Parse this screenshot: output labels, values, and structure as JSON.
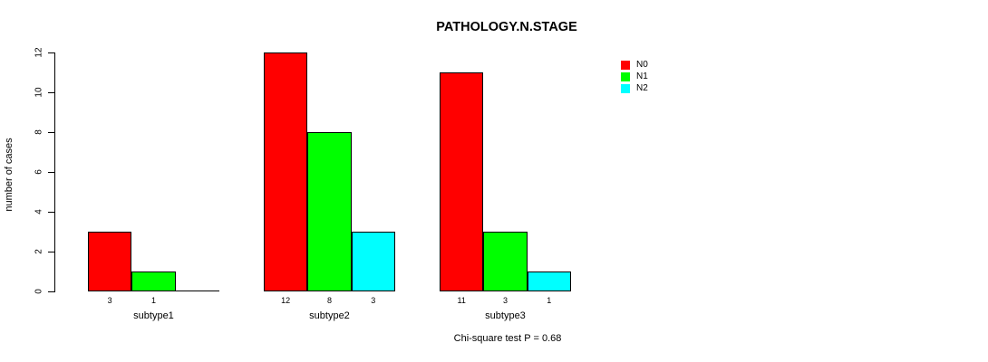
{
  "chart_data": {
    "type": "bar",
    "title": "PATHOLOGY.N.STAGE",
    "ylabel": "number of cases",
    "xlabel": "",
    "categories": [
      "subtype1",
      "subtype2",
      "subtype3"
    ],
    "series": [
      {
        "name": "N0",
        "color": "#FF0000",
        "values": [
          3,
          12,
          11
        ]
      },
      {
        "name": "N1",
        "color": "#00FF00",
        "values": [
          1,
          8,
          3
        ]
      },
      {
        "name": "N2",
        "color": "#00FFFF",
        "values": [
          0,
          3,
          1
        ]
      }
    ],
    "bar_value_labels": [
      [
        "3",
        "1",
        ""
      ],
      [
        "12",
        "8",
        "3"
      ],
      [
        "11",
        "3",
        "1"
      ]
    ],
    "yticks": [
      0,
      2,
      4,
      6,
      8,
      10,
      12
    ],
    "ylim": [
      0,
      12
    ],
    "grid": false,
    "legend_position": "top-right",
    "annotation": "Chi-square test P = 0.68"
  }
}
